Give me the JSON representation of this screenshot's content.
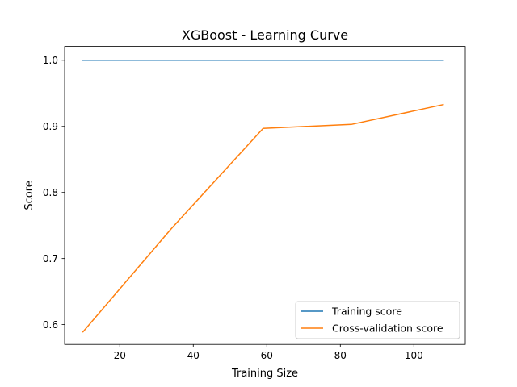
{
  "chart_data": {
    "type": "line",
    "title": "XGBoost - Learning Curve",
    "xlabel": "Training Size",
    "ylabel": "Score",
    "xlim": [
      5,
      114
    ],
    "ylim": [
      0.57,
      1.021
    ],
    "xticks": [
      20,
      40,
      60,
      80,
      100
    ],
    "yticks": [
      0.6,
      0.7,
      0.8,
      0.9,
      1.0
    ],
    "grid": false,
    "legend_position": "lower-right",
    "series": [
      {
        "name": "Training score",
        "color": "#1f77b4",
        "x": [
          10,
          34,
          59,
          83,
          108
        ],
        "y": [
          1.0,
          1.0,
          1.0,
          1.0,
          1.0
        ]
      },
      {
        "name": "Cross-validation score",
        "color": "#ff7f0e",
        "x": [
          10,
          34,
          59,
          83,
          108
        ],
        "y": [
          0.589,
          0.745,
          0.897,
          0.903,
          0.933
        ]
      }
    ]
  }
}
